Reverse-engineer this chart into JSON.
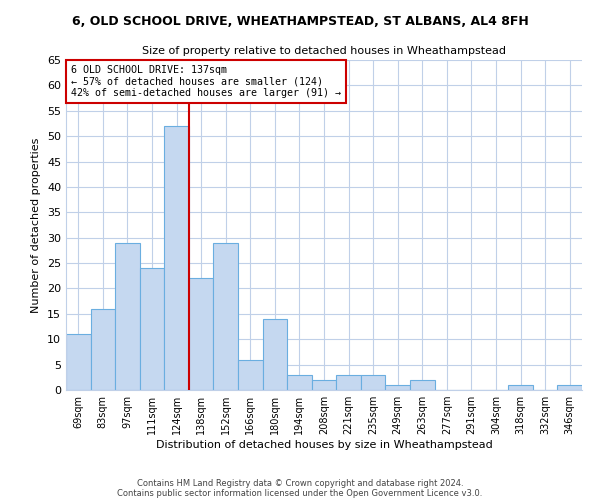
{
  "title1": "6, OLD SCHOOL DRIVE, WHEATHAMPSTEAD, ST ALBANS, AL4 8FH",
  "title2": "Size of property relative to detached houses in Wheathampstead",
  "xlabel": "Distribution of detached houses by size in Wheathampstead",
  "ylabel": "Number of detached properties",
  "bar_labels": [
    "69sqm",
    "83sqm",
    "97sqm",
    "111sqm",
    "124sqm",
    "138sqm",
    "152sqm",
    "166sqm",
    "180sqm",
    "194sqm",
    "208sqm",
    "221sqm",
    "235sqm",
    "249sqm",
    "263sqm",
    "277sqm",
    "291sqm",
    "304sqm",
    "318sqm",
    "332sqm",
    "346sqm"
  ],
  "bar_values": [
    11,
    16,
    29,
    24,
    52,
    22,
    29,
    6,
    14,
    3,
    2,
    3,
    3,
    1,
    2,
    0,
    0,
    0,
    1,
    0,
    1
  ],
  "bar_color": "#c5d8f0",
  "bar_edge_color": "#6aaee0",
  "reference_line_x": 4.5,
  "annotation_title": "6 OLD SCHOOL DRIVE: 137sqm",
  "annotation_line1": "← 57% of detached houses are smaller (124)",
  "annotation_line2": "42% of semi-detached houses are larger (91) →",
  "annotation_box_color": "#ffffff",
  "annotation_box_edge_color": "#cc0000",
  "vline_color": "#cc0000",
  "ylim": [
    0,
    65
  ],
  "yticks": [
    0,
    5,
    10,
    15,
    20,
    25,
    30,
    35,
    40,
    45,
    50,
    55,
    60,
    65
  ],
  "footer1": "Contains HM Land Registry data © Crown copyright and database right 2024.",
  "footer2": "Contains public sector information licensed under the Open Government Licence v3.0.",
  "bg_color": "#ffffff",
  "grid_color": "#c0d0e8"
}
